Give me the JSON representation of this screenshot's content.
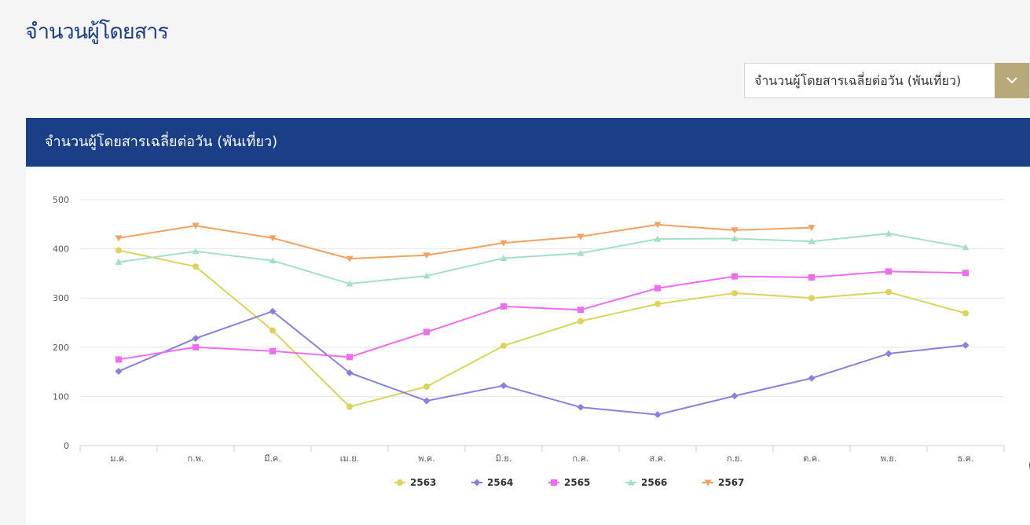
{
  "page": {
    "title": "จำนวนผู้โดยสาร"
  },
  "selector": {
    "selected": "จำนวนผู้โดยสารเฉลี่ยต่อวัน (พันเที่ยว)"
  },
  "panel": {
    "title": "จำนวนผู้โดยสารเฉลี่ยต่อวัน (พันเที่ยว)"
  },
  "colors": {
    "header": "#1b3f86",
    "accent": "#b8a97a"
  },
  "chart_data": {
    "type": "line",
    "categories": [
      "ม.ค.",
      "ก.พ.",
      "มี.ค.",
      "เม.ย.",
      "พ.ค.",
      "มิ.ย.",
      "ก.ค.",
      "ส.ค.",
      "ก.ย.",
      "ต.ค.",
      "พ.ย.",
      "ธ.ค."
    ],
    "ylim": [
      0,
      500
    ],
    "yticks": [
      0,
      100,
      200,
      300,
      400,
      500
    ],
    "grid": true,
    "legend_position": "bottom",
    "series": [
      {
        "name": "2563",
        "color": "#dcd35a",
        "marker": "circle",
        "values": [
          397,
          364,
          234,
          79,
          120,
          203,
          253,
          288,
          310,
          300,
          312,
          269
        ]
      },
      {
        "name": "2564",
        "color": "#8880e0",
        "marker": "diamond",
        "values": [
          151,
          218,
          273,
          148,
          91,
          122,
          78,
          63,
          101,
          137,
          187,
          204
        ]
      },
      {
        "name": "2565",
        "color": "#ef6bef",
        "marker": "square",
        "values": [
          175,
          200,
          192,
          180,
          231,
          283,
          276,
          320,
          344,
          342,
          354,
          351
        ]
      },
      {
        "name": "2566",
        "color": "#a3e0c5",
        "marker": "triangle",
        "values": [
          373,
          395,
          376,
          329,
          345,
          381,
          391,
          420,
          421,
          415,
          431,
          403
        ]
      },
      {
        "name": "2567",
        "color": "#f2a25e",
        "marker": "triangle-down",
        "values": [
          422,
          447,
          422,
          380,
          387,
          412,
          425,
          449,
          438,
          443,
          null,
          null
        ]
      }
    ]
  }
}
